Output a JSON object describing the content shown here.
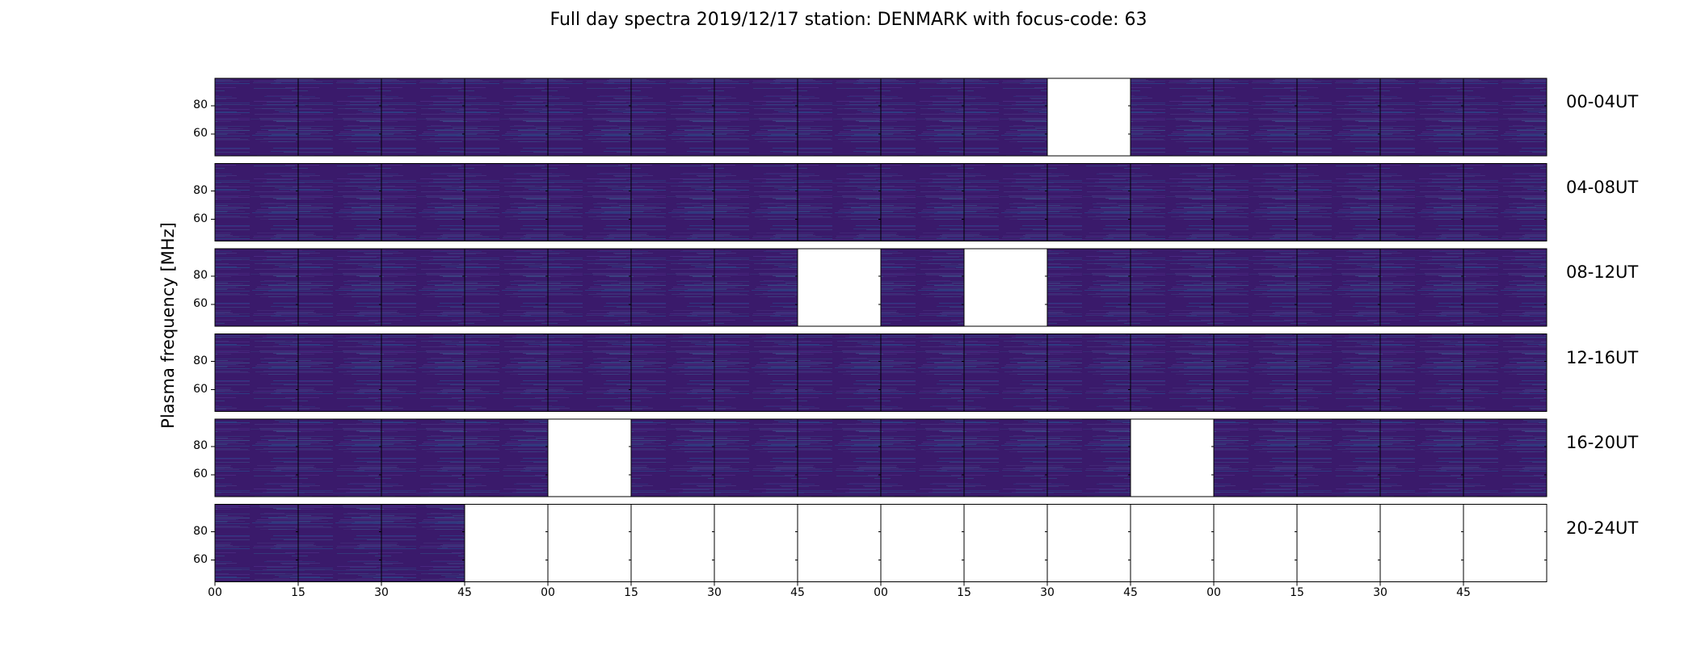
{
  "figure": {
    "title": "Full day spectra 2019/12/17 station: DENMARK with focus-code: 63",
    "ylabel": "Plasma frequency [MHz]"
  },
  "chart_data": {
    "type": "heatmap",
    "title": "Full day spectra 2019/12/17 station: DENMARK with focus-code: 63",
    "xlabel": "",
    "ylabel": "Plasma frequency [MHz]",
    "y_ticks": [
      "80",
      "60"
    ],
    "x_ticks": [
      "00",
      "15",
      "30",
      "45",
      "00",
      "15",
      "30",
      "45",
      "00",
      "15",
      "30",
      "45",
      "00",
      "15",
      "30",
      "45"
    ],
    "colormap": "viridis",
    "colors": {
      "panel_base": "#3a1a6b",
      "missing": "#ffffff"
    },
    "rows": [
      {
        "label": "00-04UT",
        "panels": [
          1,
          1,
          1,
          1,
          1,
          1,
          1,
          1,
          1,
          1,
          0,
          1,
          1,
          1,
          1,
          1
        ]
      },
      {
        "label": "04-08UT",
        "panels": [
          1,
          1,
          1,
          1,
          1,
          1,
          1,
          1,
          1,
          1,
          1,
          1,
          1,
          1,
          1,
          1
        ]
      },
      {
        "label": "08-12UT",
        "panels": [
          1,
          1,
          1,
          1,
          1,
          1,
          1,
          0,
          1,
          0,
          1,
          1,
          1,
          1,
          1,
          1
        ]
      },
      {
        "label": "12-16UT",
        "panels": [
          1,
          1,
          1,
          1,
          1,
          1,
          1,
          1,
          1,
          1,
          1,
          1,
          1,
          1,
          1,
          1
        ]
      },
      {
        "label": "16-20UT",
        "panels": [
          1,
          1,
          1,
          1,
          0,
          1,
          1,
          1,
          1,
          1,
          1,
          0,
          1,
          1,
          1,
          1
        ]
      },
      {
        "label": "20-24UT",
        "panels": [
          1,
          1,
          1,
          0,
          0,
          0,
          0,
          0,
          0,
          0,
          0,
          0,
          0,
          0,
          0,
          0
        ]
      }
    ]
  }
}
